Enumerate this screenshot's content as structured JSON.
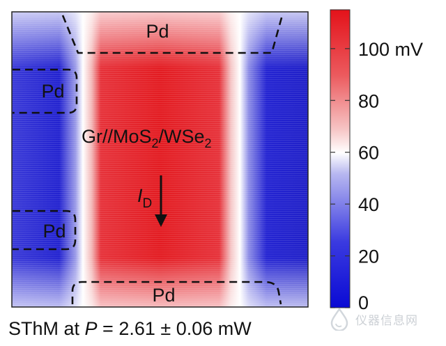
{
  "chart_data": {
    "type": "heatmap",
    "title": "",
    "colorbar": {
      "unit_label": "100 mV",
      "range": [
        0,
        115
      ],
      "ticks": [
        {
          "value": 100,
          "label": "100 mV"
        },
        {
          "value": 80,
          "label": "80"
        },
        {
          "value": 60,
          "label": "60"
        },
        {
          "value": 40,
          "label": "40"
        },
        {
          "value": 20,
          "label": "20"
        },
        {
          "value": 0,
          "label": "0"
        }
      ],
      "colors": {
        "low": "#1010d8",
        "mid": "#ffffff",
        "high": "#e8141a"
      }
    },
    "map_profile": {
      "description_regions": [
        "electrode-left",
        "channel",
        "electrode-right"
      ],
      "left_value_mV": 18,
      "channel_value_mV": 108,
      "right_value_mV": 22
    },
    "annotations": {
      "pd_top": "Pd",
      "pd_left_upper": "Pd",
      "pd_left_lower": "Pd",
      "pd_bottom": "Pd",
      "stack_gr": "Gr//MoS",
      "stack_sub1": "2",
      "stack_mid": "/WSe",
      "stack_sub2": "2",
      "current_symbol": "I",
      "current_sub": "D"
    }
  },
  "caption": {
    "prefix": "SThM at ",
    "variable": "P",
    "value": " = 2.61 ± 0.06 mW"
  },
  "watermark": {
    "text": "仪器信息网",
    "icon": "drop-logo-icon"
  }
}
